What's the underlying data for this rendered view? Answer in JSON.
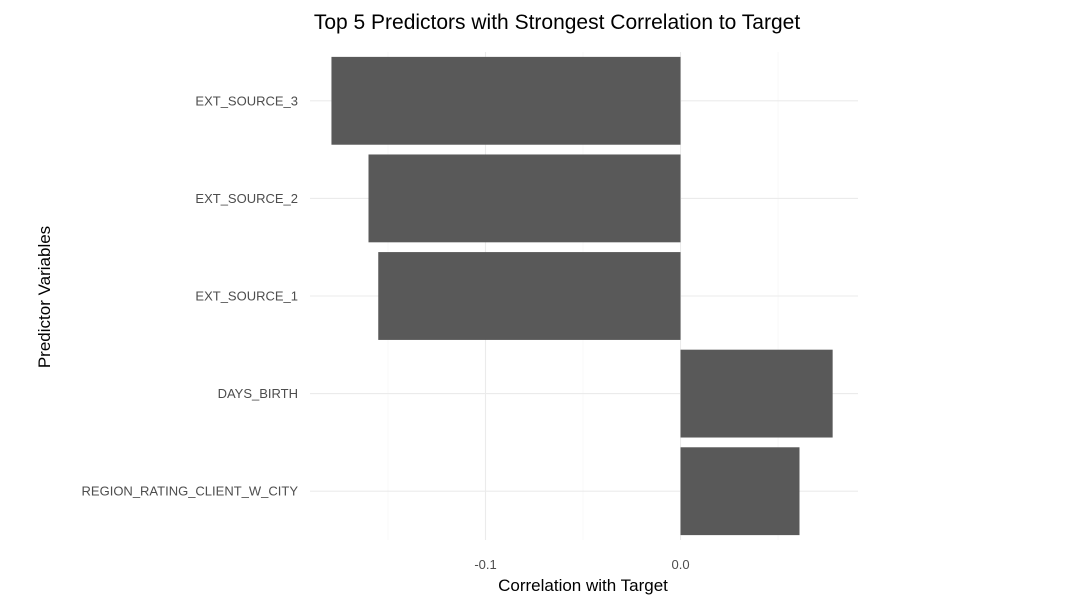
{
  "chart_data": {
    "type": "bar",
    "orientation": "horizontal",
    "title": "Top 5 Predictors with Strongest Correlation to Target",
    "xlabel": "Correlation with Target",
    "ylabel": "Predictor Variables",
    "categories": [
      "EXT_SOURCE_3",
      "EXT_SOURCE_2",
      "EXT_SOURCE_1",
      "DAYS_BIRTH",
      "REGION_RATING_CLIENT_W_CITY"
    ],
    "values": [
      -0.179,
      -0.16,
      -0.155,
      0.078,
      0.061
    ],
    "xlim": [
      -0.19,
      0.091
    ],
    "x_ticks": [
      {
        "value": -0.1,
        "label": "-0.1"
      },
      {
        "value": 0.0,
        "label": "0.0"
      }
    ],
    "bar_color": "#595959",
    "grid": true,
    "legend": "none"
  }
}
